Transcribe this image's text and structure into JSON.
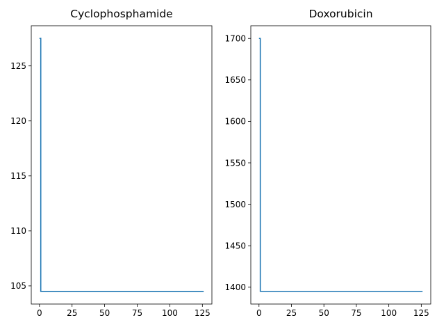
{
  "chart_data": [
    {
      "type": "line",
      "title": "Cyclophosphamide",
      "xlabel": "",
      "ylabel": "",
      "xlim": [
        -6.3,
        132.3
      ],
      "ylim": [
        103.35,
        128.65
      ],
      "xticks": [
        0,
        25,
        50,
        75,
        100,
        125
      ],
      "yticks": [
        105,
        110,
        115,
        120,
        125
      ],
      "grid": false,
      "series": [
        {
          "color": "#1f77b4",
          "x": [
            0,
            1,
            1,
            126
          ],
          "y": [
            127.5,
            127.5,
            104.5,
            104.5
          ]
        }
      ]
    },
    {
      "type": "line",
      "title": "Doxorubicin",
      "xlabel": "",
      "ylabel": "",
      "xlim": [
        -6.3,
        132.3
      ],
      "ylim": [
        1379.7,
        1715.3
      ],
      "xticks": [
        0,
        25,
        50,
        75,
        100,
        125
      ],
      "yticks": [
        1400,
        1450,
        1500,
        1550,
        1600,
        1650,
        1700
      ],
      "grid": false,
      "series": [
        {
          "color": "#1f77b4",
          "x": [
            0,
            1,
            1,
            126
          ],
          "y": [
            1700,
            1700,
            1395,
            1395
          ]
        }
      ]
    }
  ]
}
